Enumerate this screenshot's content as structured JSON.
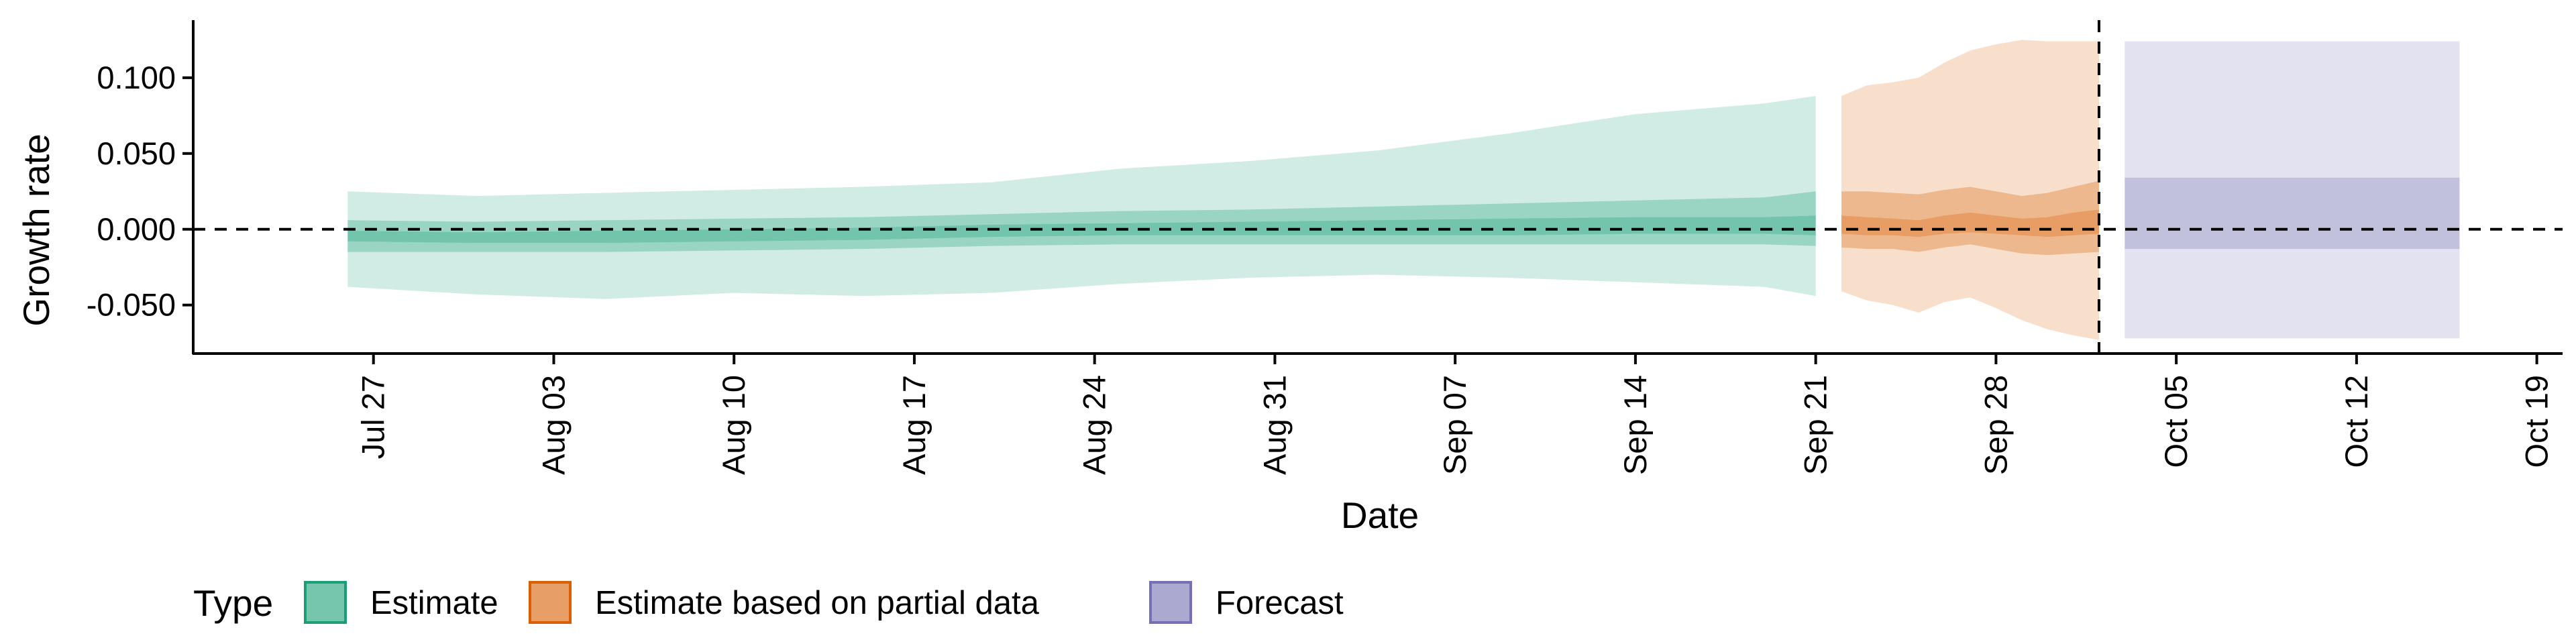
{
  "chart_data": {
    "type": "area",
    "xlabel": "Date",
    "ylabel": "Growth rate",
    "x_ticks": [
      "Jul 27",
      "Aug 03",
      "Aug 10",
      "Aug 17",
      "Aug 24",
      "Aug 31",
      "Sep 07",
      "Sep 14",
      "Sep 21",
      "Sep 28",
      "Oct 05",
      "Oct 12",
      "Oct 19"
    ],
    "y_ticks": [
      "-0.050",
      "0.000",
      "0.050",
      "0.100"
    ],
    "xlim": [
      "2020-07-20",
      "2020-10-20"
    ],
    "ylim": [
      -0.082,
      0.138
    ],
    "reference_lines": {
      "y": 0.0,
      "x": "2020-10-02"
    },
    "legend": {
      "title": "Type",
      "position": "bottom",
      "items": [
        {
          "label": "Estimate",
          "color": "#1b9e77"
        },
        {
          "label": "Estimate based on partial data",
          "color": "#d95f02"
        },
        {
          "label": "Forecast",
          "color": "#7570b3"
        }
      ]
    },
    "series": [
      {
        "name": "Estimate",
        "color": "#1b9e77",
        "x": [
          "2020-07-26",
          "2020-07-31",
          "2020-08-05",
          "2020-08-10",
          "2020-08-15",
          "2020-08-20",
          "2020-08-25",
          "2020-08-30",
          "2020-09-04",
          "2020-09-09",
          "2020-09-14",
          "2020-09-19",
          "2020-09-21"
        ],
        "upper_90": [
          0.025,
          0.022,
          0.024,
          0.026,
          0.028,
          0.031,
          0.04,
          0.045,
          0.052,
          0.063,
          0.076,
          0.083,
          0.088
        ],
        "lower_90": [
          -0.038,
          -0.043,
          -0.046,
          -0.042,
          -0.044,
          -0.042,
          -0.036,
          -0.032,
          -0.03,
          -0.032,
          -0.035,
          -0.038,
          -0.044
        ],
        "upper_50": [
          0.006,
          0.005,
          0.006,
          0.007,
          0.008,
          0.01,
          0.012,
          0.013,
          0.015,
          0.017,
          0.019,
          0.021,
          0.025
        ],
        "lower_50": [
          -0.015,
          -0.015,
          -0.015,
          -0.014,
          -0.013,
          -0.011,
          -0.01,
          -0.01,
          -0.01,
          -0.01,
          -0.01,
          -0.01,
          -0.011
        ],
        "upper_20": [
          -0.001,
          -0.002,
          -0.001,
          0.0,
          0.001,
          0.003,
          0.004,
          0.005,
          0.006,
          0.007,
          0.008,
          0.008,
          0.009
        ],
        "lower_20": [
          -0.008,
          -0.009,
          -0.009,
          -0.008,
          -0.007,
          -0.005,
          -0.004,
          -0.004,
          -0.004,
          -0.004,
          -0.003,
          -0.003,
          -0.004
        ]
      },
      {
        "name": "Estimate based on partial data",
        "color": "#d95f02",
        "x": [
          "2020-09-22",
          "2020-09-23",
          "2020-09-24",
          "2020-09-25",
          "2020-09-26",
          "2020-09-27",
          "2020-09-28",
          "2020-09-29",
          "2020-09-30",
          "2020-10-01",
          "2020-10-02"
        ],
        "upper_90": [
          0.088,
          0.095,
          0.097,
          0.1,
          0.11,
          0.118,
          0.122,
          0.125,
          0.124,
          0.124,
          0.124
        ],
        "lower_90": [
          -0.041,
          -0.047,
          -0.05,
          -0.055,
          -0.048,
          -0.045,
          -0.052,
          -0.06,
          -0.066,
          -0.07,
          -0.073
        ],
        "upper_50": [
          0.025,
          0.025,
          0.024,
          0.023,
          0.026,
          0.028,
          0.025,
          0.022,
          0.024,
          0.028,
          0.032
        ],
        "lower_50": [
          -0.012,
          -0.013,
          -0.013,
          -0.015,
          -0.012,
          -0.01,
          -0.013,
          -0.016,
          -0.017,
          -0.016,
          -0.015
        ],
        "upper_20": [
          0.009,
          0.008,
          0.007,
          0.006,
          0.009,
          0.011,
          0.009,
          0.007,
          0.008,
          0.011,
          0.013
        ],
        "lower_20": [
          -0.003,
          -0.004,
          -0.004,
          -0.005,
          -0.003,
          -0.002,
          -0.003,
          -0.004,
          -0.005,
          -0.004,
          -0.003
        ]
      },
      {
        "name": "Forecast",
        "color": "#7570b3",
        "x": [
          "2020-10-03",
          "2020-10-16"
        ],
        "upper_90": [
          0.124,
          0.124
        ],
        "lower_90": [
          -0.072,
          -0.072
        ],
        "upper_50": [
          0.034,
          0.034
        ],
        "lower_50": [
          -0.013,
          -0.013
        ]
      }
    ]
  }
}
